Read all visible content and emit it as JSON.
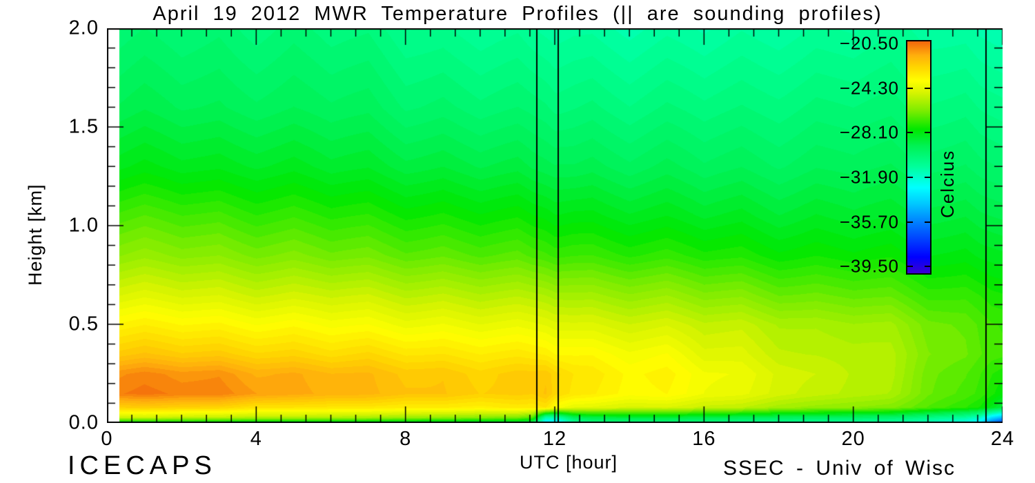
{
  "figure": {
    "title": "April 19 2012 MWR Temperature Profiles (|| are sounding profiles)",
    "xlabel": "UTC [hour]",
    "ylabel": "Height [km]",
    "credit_left": "ICECAPS",
    "credit_right": "SSEC - Univ of Wisc"
  },
  "chart_data": {
    "type": "heatmap",
    "title": "April 19 2012 MWR Temperature Profiles (|| are sounding profiles)",
    "xlabel": "UTC [hour]",
    "ylabel": "Height [km]",
    "x_range": [
      0,
      24
    ],
    "y_range": [
      0,
      2
    ],
    "x_ticks": [
      {
        "label": "0",
        "v": 0
      },
      {
        "label": "4",
        "v": 4
      },
      {
        "label": "8",
        "v": 8
      },
      {
        "label": "12",
        "v": 12
      },
      {
        "label": "16",
        "v": 16
      },
      {
        "label": "20",
        "v": 20
      },
      {
        "label": "24",
        "v": 24
      }
    ],
    "y_ticks": [
      {
        "label": "0.0",
        "v": 0
      },
      {
        "label": "0.5",
        "v": 0.5
      },
      {
        "label": "1.0",
        "v": 1
      },
      {
        "label": "1.5",
        "v": 1.5
      },
      {
        "label": "2.0",
        "v": 2
      }
    ],
    "x_minors_per_major": 6,
    "y_minor_step": 0.1,
    "grid_lines": false,
    "contour_level_step": 0.28,
    "data_start_hour": 0.33,
    "sounding_times_utc": [
      11.52,
      12.09,
      23.56
    ],
    "colorbar": {
      "title": "Celcius",
      "vmin": -40.2,
      "vmax": -20.2,
      "tick_labels": [
        "−20.50",
        "−24.30",
        "−28.10",
        "−31.90",
        "−35.70",
        "−39.50"
      ],
      "tick_values": [
        -20.5,
        -24.3,
        -28.1,
        -31.9,
        -35.7,
        -39.5
      ]
    },
    "colormap_stops": [
      [
        0.0,
        "#3C00D2"
      ],
      [
        0.07,
        "#0000FF"
      ],
      [
        0.2,
        "#006EFF"
      ],
      [
        0.3,
        "#00C8FF"
      ],
      [
        0.37,
        "#00FFFF"
      ],
      [
        0.46,
        "#00FF9B"
      ],
      [
        0.55,
        "#00F253"
      ],
      [
        0.62,
        "#00E800"
      ],
      [
        0.7,
        "#7CEC00"
      ],
      [
        0.78,
        "#D8F400"
      ],
      [
        0.83,
        "#FFFF00"
      ],
      [
        0.89,
        "#FFD500"
      ],
      [
        0.94,
        "#FFAE0C"
      ],
      [
        1.0,
        "#F2660C"
      ]
    ],
    "grid": {
      "x_hours": [
        0.33,
        1,
        2,
        3,
        4,
        5,
        6,
        7,
        8,
        9,
        10,
        11,
        11.4,
        11.75,
        12.1,
        12.5,
        13,
        14,
        15,
        16,
        17,
        18,
        19,
        20,
        21,
        22,
        23,
        23.4,
        23.7,
        24
      ],
      "y_km": [
        0.0,
        0.03,
        0.08,
        0.15,
        0.25,
        0.35,
        0.5,
        0.65,
        0.85,
        1.05,
        1.3,
        1.6,
        2.0
      ],
      "temperature_c": [
        [
          -28.8,
          -28.8,
          -28.8,
          -28.9,
          -29.0,
          -29.0,
          -29.1,
          -29.1,
          -29.2,
          -29.3,
          -29.4,
          -29.6,
          -30.0,
          -33.8,
          -33.5,
          -31.3,
          -30.5,
          -30.4,
          -30.5,
          -30.6,
          -30.8,
          -30.9,
          -31.1,
          -31.2,
          -31.4,
          -31.9,
          -32.6,
          -33.5,
          -36.3,
          -37.8
        ],
        [
          -24.8,
          -24.8,
          -24.9,
          -25.0,
          -25.1,
          -25.2,
          -25.3,
          -25.4,
          -25.5,
          -25.7,
          -25.9,
          -26.2,
          -26.8,
          -31.3,
          -31.0,
          -29.3,
          -28.9,
          -28.7,
          -28.8,
          -29.0,
          -29.2,
          -29.3,
          -29.5,
          -29.6,
          -29.8,
          -30.3,
          -31.0,
          -31.8,
          -33.5,
          -34.5
        ],
        [
          -22.3,
          -22.3,
          -22.3,
          -22.4,
          -22.7,
          -22.9,
          -22.9,
          -23.0,
          -23.0,
          -23.1,
          -23.2,
          -23.1,
          -23.1,
          -22.8,
          -23.8,
          -24.2,
          -24.3,
          -24.5,
          -24.6,
          -24.9,
          -25.1,
          -25.4,
          -25.8,
          -25.9,
          -26.2,
          -26.7,
          -27.3,
          -27.6,
          -28.2,
          -28.8
        ],
        [
          -20.6,
          -20.6,
          -20.6,
          -20.7,
          -21.0,
          -21.4,
          -21.5,
          -21.7,
          -21.8,
          -22.0,
          -22.2,
          -22.3,
          -22.3,
          -21.9,
          -22.5,
          -22.9,
          -23.1,
          -23.4,
          -23.5,
          -23.9,
          -24.2,
          -24.5,
          -25.0,
          -25.1,
          -25.5,
          -26.3,
          -26.9,
          -27.1,
          -27.4,
          -27.8
        ],
        [
          -20.9,
          -20.9,
          -20.9,
          -21.0,
          -21.3,
          -21.5,
          -21.6,
          -21.8,
          -21.9,
          -22.1,
          -22.3,
          -22.3,
          -22.2,
          -22.0,
          -22.4,
          -22.8,
          -23.0,
          -23.3,
          -23.4,
          -23.8,
          -24.1,
          -24.4,
          -24.9,
          -25.0,
          -25.4,
          -26.2,
          -26.8,
          -27.0,
          -27.2,
          -27.3
        ],
        [
          -22.1,
          -22.1,
          -22.1,
          -22.2,
          -22.3,
          -22.5,
          -22.6,
          -22.6,
          -22.7,
          -22.9,
          -23.0,
          -23.1,
          -23.1,
          -23.1,
          -23.3,
          -23.4,
          -23.5,
          -23.7,
          -23.8,
          -24.3,
          -24.5,
          -24.8,
          -25.2,
          -25.1,
          -25.4,
          -26.0,
          -26.5,
          -26.7,
          -26.8,
          -26.8
        ],
        [
          -23.3,
          -23.3,
          -23.3,
          -23.4,
          -23.5,
          -23.6,
          -23.7,
          -23.8,
          -23.9,
          -24.0,
          -24.1,
          -24.2,
          -24.2,
          -24.2,
          -24.3,
          -24.4,
          -24.5,
          -24.6,
          -24.7,
          -24.9,
          -25.0,
          -25.2,
          -25.5,
          -25.5,
          -25.7,
          -26.2,
          -26.6,
          -26.8,
          -26.9,
          -26.9
        ],
        [
          -24.5,
          -24.5,
          -24.5,
          -24.6,
          -24.7,
          -24.8,
          -24.8,
          -24.9,
          -25.0,
          -25.1,
          -25.2,
          -25.3,
          -25.3,
          -25.3,
          -25.4,
          -25.5,
          -25.6,
          -25.7,
          -25.8,
          -26.0,
          -26.1,
          -26.3,
          -26.5,
          -26.5,
          -26.7,
          -27.0,
          -27.2,
          -27.3,
          -27.4,
          -27.4
        ],
        [
          -25.9,
          -25.9,
          -25.9,
          -26.0,
          -26.1,
          -26.2,
          -26.3,
          -26.4,
          -26.5,
          -26.6,
          -26.7,
          -26.8,
          -26.9,
          -26.9,
          -27.0,
          -27.0,
          -27.1,
          -27.2,
          -27.3,
          -27.4,
          -27.5,
          -27.6,
          -27.7,
          -27.7,
          -27.8,
          -28.0,
          -28.1,
          -28.2,
          -28.2,
          -28.2
        ],
        [
          -26.9,
          -26.9,
          -26.9,
          -27.0,
          -27.1,
          -27.2,
          -27.3,
          -27.4,
          -27.5,
          -27.6,
          -27.7,
          -27.8,
          -27.9,
          -27.9,
          -28.0,
          -28.0,
          -28.1,
          -28.2,
          -28.3,
          -28.4,
          -28.4,
          -28.5,
          -28.5,
          -28.5,
          -28.6,
          -28.7,
          -28.8,
          -28.9,
          -28.9,
          -28.9
        ],
        [
          -28.2,
          -28.2,
          -28.2,
          -28.3,
          -28.3,
          -28.4,
          -28.5,
          -28.6,
          -28.7,
          -28.8,
          -28.9,
          -29.0,
          -29.1,
          -29.1,
          -29.1,
          -29.2,
          -29.2,
          -29.3,
          -29.3,
          -29.4,
          -29.4,
          -29.4,
          -29.4,
          -29.3,
          -29.4,
          -29.5,
          -29.6,
          -29.7,
          -29.7,
          -29.7
        ],
        [
          -29.2,
          -29.2,
          -29.2,
          -29.3,
          -29.3,
          -29.4,
          -29.4,
          -29.5,
          -29.7,
          -29.8,
          -29.9,
          -30.0,
          -30.0,
          -30.0,
          -30.1,
          -30.1,
          -30.1,
          -30.2,
          -30.2,
          -30.2,
          -30.2,
          -30.1,
          -30.1,
          -30.0,
          -30.1,
          -30.2,
          -30.3,
          -30.4,
          -30.4,
          -30.4
        ],
        [
          -30.0,
          -30.0,
          -30.0,
          -30.0,
          -30.1,
          -30.1,
          -30.2,
          -30.3,
          -30.5,
          -30.7,
          -30.8,
          -30.9,
          -31.0,
          -31.0,
          -31.0,
          -31.0,
          -31.1,
          -31.2,
          -31.2,
          -31.2,
          -31.1,
          -31.0,
          -31.0,
          -30.9,
          -30.9,
          -31.0,
          -31.2,
          -31.3,
          -31.3,
          -31.3
        ]
      ]
    }
  }
}
